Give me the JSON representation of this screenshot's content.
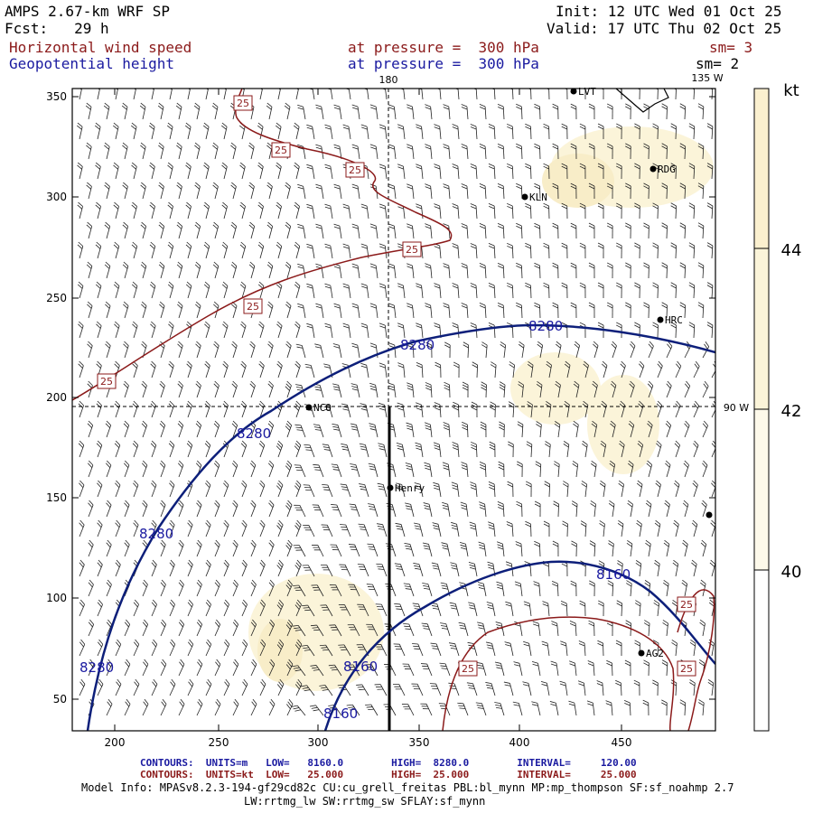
{
  "header": {
    "model": "AMPS 2.67-km WRF SP",
    "forecast": "Fcst:   29 h",
    "init": "Init: 12 UTC Wed 01 Oct 25",
    "valid": "Valid: 17 UTC Thu 02 Oct 25",
    "field1_name": "Horizontal wind speed",
    "field1_level": "at pressure =  300 hPa",
    "field1_sm": "sm= 3",
    "field2_name": "Geopotential height",
    "field2_level": "at pressure =  300 hPa",
    "field2_sm": "sm= 2"
  },
  "map": {
    "x_ticks": [
      "200",
      "250",
      "300",
      "350",
      "400",
      "450"
    ],
    "y_ticks": [
      "350",
      "300",
      "250",
      "200",
      "150",
      "100",
      "50"
    ],
    "lon_labels": {
      "top_180": "180",
      "top_135": "135 W",
      "right_90": "90 W"
    },
    "stations": [
      {
        "name": "LVT"
      },
      {
        "name": "RDG"
      },
      {
        "name": "KLN"
      },
      {
        "name": "HRC"
      },
      {
        "name": "NCO"
      },
      {
        "name": "Henry"
      },
      {
        "name": "AG2"
      },
      {
        "name": ""
      }
    ],
    "height_labels": [
      "8280",
      "8280",
      "8280",
      "8280",
      "8280",
      "8160",
      "8160",
      "8160"
    ],
    "speed_labels": [
      "25",
      "25",
      "25",
      "25",
      "25",
      "25",
      "25",
      "25",
      "25"
    ],
    "colors": {
      "height_contour": "#0d1f7a",
      "speed_contour": "#8b1a1a",
      "fill_light": "#fbf4d9",
      "fill_mid": "#f8edc8"
    }
  },
  "colorbar": {
    "unit": "kt",
    "labels": [
      "44",
      "42",
      "40"
    ]
  },
  "footer": {
    "contours1": "CONTOURS:  UNITS=m   LOW=   8160.0        HIGH=  8280.0        INTERVAL=     120.00",
    "contours2": "CONTOURS:  UNITS=kt  LOW=   25.000        HIGH=  25.000        INTERVAL=     25.000",
    "model_info": "Model Info: MPASv8.2.3-194-gf29cd82c CU:cu_grell_freitas PBL:bl_mynn MP:mp_thompson SF:sf_noahmp 2.7",
    "model_info2": "LW:rrtmg_lw SW:rrtmg_sw SFLAY:sf_mynn"
  }
}
